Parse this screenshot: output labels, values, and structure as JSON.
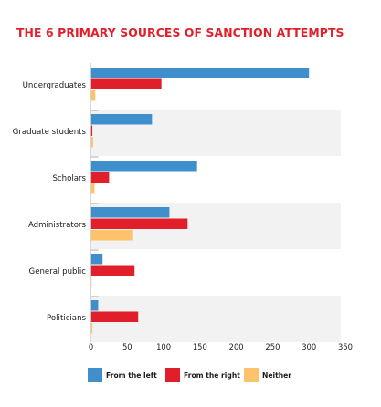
{
  "chart_data": {
    "type": "bar",
    "orientation": "horizontal",
    "title": "THE 6 PRIMARY SOURCES OF SANCTION ATTEMPTS",
    "categories": [
      "Undergraduates",
      "Graduate students",
      "Scholars",
      "Administrators",
      "General public",
      "Politicians"
    ],
    "series": [
      {
        "name": "From the left",
        "color": "#3f8fcd",
        "values": [
          300,
          84,
          146,
          108,
          16,
          10
        ]
      },
      {
        "name": "From the right",
        "color": "#e11f2a",
        "values": [
          97,
          2,
          25,
          133,
          60,
          65
        ]
      },
      {
        "name": "Neither",
        "color": "#fcc36b",
        "values": [
          6,
          3,
          5,
          58,
          1,
          2
        ]
      }
    ],
    "xlim": [
      0,
      350
    ],
    "xticks": [
      0,
      50,
      100,
      150,
      200,
      250,
      300,
      350
    ],
    "xlabel": "",
    "ylabel": "",
    "grid": false,
    "alternating_band_color": "#f2f2f2",
    "legend_position": "bottom"
  }
}
